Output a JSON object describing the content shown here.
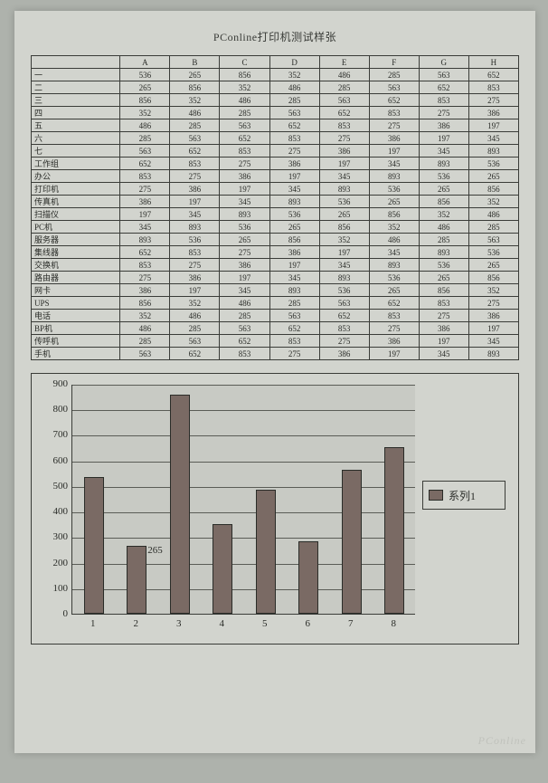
{
  "title": "PConline打印机测试样张",
  "table": {
    "columns": [
      "",
      "A",
      "B",
      "C",
      "D",
      "E",
      "F",
      "G",
      "H"
    ],
    "rows": [
      [
        "一",
        536,
        265,
        856,
        352,
        486,
        285,
        563,
        652
      ],
      [
        "二",
        265,
        856,
        352,
        486,
        285,
        563,
        652,
        853
      ],
      [
        "三",
        856,
        352,
        486,
        285,
        563,
        652,
        853,
        275
      ],
      [
        "四",
        352,
        486,
        285,
        563,
        652,
        853,
        275,
        386
      ],
      [
        "五",
        486,
        285,
        563,
        652,
        853,
        275,
        386,
        197
      ],
      [
        "六",
        285,
        563,
        652,
        853,
        275,
        386,
        197,
        345
      ],
      [
        "七",
        563,
        652,
        853,
        275,
        386,
        197,
        345,
        893
      ],
      [
        "工作组",
        652,
        853,
        275,
        386,
        197,
        345,
        893,
        536
      ],
      [
        "办公",
        853,
        275,
        386,
        197,
        345,
        893,
        536,
        265
      ],
      [
        "打印机",
        275,
        386,
        197,
        345,
        893,
        536,
        265,
        856
      ],
      [
        "传真机",
        386,
        197,
        345,
        893,
        536,
        265,
        856,
        352
      ],
      [
        "扫描仪",
        197,
        345,
        893,
        536,
        265,
        856,
        352,
        486
      ],
      [
        "PC机",
        345,
        893,
        536,
        265,
        856,
        352,
        486,
        285
      ],
      [
        "服务器",
        893,
        536,
        265,
        856,
        352,
        486,
        285,
        563
      ],
      [
        "集线器",
        652,
        853,
        275,
        386,
        197,
        345,
        893,
        536
      ],
      [
        "交换机",
        853,
        275,
        386,
        197,
        345,
        893,
        536,
        265
      ],
      [
        "路由器",
        275,
        386,
        197,
        345,
        893,
        536,
        265,
        856
      ],
      [
        "网卡",
        386,
        197,
        345,
        893,
        536,
        265,
        856,
        352
      ],
      [
        "UPS",
        856,
        352,
        486,
        285,
        563,
        652,
        853,
        275
      ],
      [
        "电话",
        352,
        486,
        285,
        563,
        652,
        853,
        275,
        386
      ],
      [
        "BP机",
        486,
        285,
        563,
        652,
        853,
        275,
        386,
        197
      ],
      [
        "传呼机",
        285,
        563,
        652,
        853,
        275,
        386,
        197,
        345
      ],
      [
        "手机",
        563,
        652,
        853,
        275,
        386,
        197,
        345,
        893
      ]
    ]
  },
  "chart": {
    "type": "bar",
    "categories": [
      "1",
      "2",
      "3",
      "4",
      "5",
      "6",
      "7",
      "8"
    ],
    "values": [
      536,
      265,
      856,
      352,
      486,
      285,
      563,
      652
    ],
    "bar_color": "#7a6a64",
    "ylim": [
      0,
      900
    ],
    "ytick_step": 100,
    "plot_bg": "#c8cac4",
    "border_color": "#3a3c38",
    "grid_color": "#5a5c56",
    "label_fontsize": 11,
    "legend_label": "系列1",
    "data_label_index": 1,
    "data_label_text": "265"
  },
  "watermark": "PConline",
  "colors": {
    "page_bg": "#d2d4ce",
    "body_bg": "#aeb2ac",
    "text": "#2a2c28"
  }
}
